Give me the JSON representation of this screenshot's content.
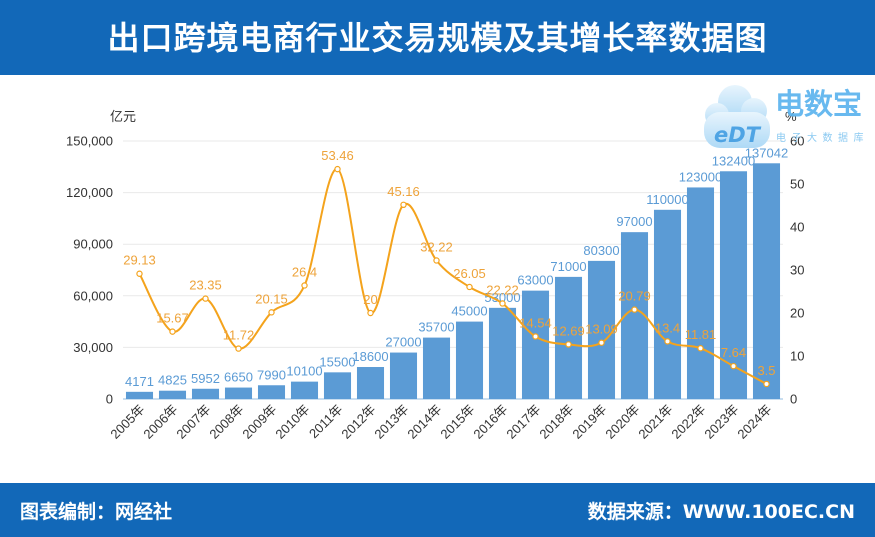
{
  "colors": {
    "brand_blue": "#1268b8",
    "bar": "#5b9bd5",
    "bar_label": "#5b9bd5",
    "line": "#f4a31c",
    "line_label": "#eea33a",
    "logo": "#58b2ee"
  },
  "logo": {
    "mark": "eDT",
    "name": "电数宝",
    "subtitle": "电子大数据库"
  },
  "footer": {
    "compiled_by": "图表编制：网经社",
    "source": "数据来源：WWW.100EC.CN"
  },
  "chart_data": {
    "type": "bar",
    "title": "出口跨境电商行业交易规模及其增长率数据图",
    "categories": [
      "2005年",
      "2006年",
      "2007年",
      "2008年",
      "2009年",
      "2010年",
      "2011年",
      "2012年",
      "2013年",
      "2014年",
      "2015年",
      "2016年",
      "2017年",
      "2018年",
      "2019年",
      "2020年",
      "2021年",
      "2022年",
      "2023年",
      "2024年"
    ],
    "series": [
      {
        "type": "bar",
        "axis": "left",
        "data_labels": true,
        "values": [
          4171,
          4825,
          5952,
          6650,
          7990,
          10100,
          15500,
          18600,
          27000,
          35700,
          45000,
          53000,
          63000,
          71000,
          80300,
          97000,
          110000,
          123000,
          132400,
          137042
        ]
      },
      {
        "type": "line",
        "axis": "right",
        "smooth": true,
        "data_labels": true,
        "values": [
          29.13,
          15.67,
          23.35,
          11.72,
          20.15,
          26.4,
          53.46,
          20,
          45.16,
          32.22,
          26.05,
          22.22,
          14.54,
          12.69,
          13.09,
          20.79,
          13.4,
          11.81,
          7.64,
          3.5
        ]
      }
    ],
    "y_left": {
      "label": "亿元",
      "ylim": [
        0,
        150000
      ],
      "ticks": [
        0,
        30000,
        60000,
        90000,
        120000,
        150000
      ]
    },
    "y_right": {
      "label": "%",
      "ylim": [
        0,
        60
      ],
      "ticks": [
        0,
        10,
        20,
        30,
        40,
        50,
        60
      ]
    },
    "xlabel": "",
    "grid": true,
    "legend": "none"
  }
}
